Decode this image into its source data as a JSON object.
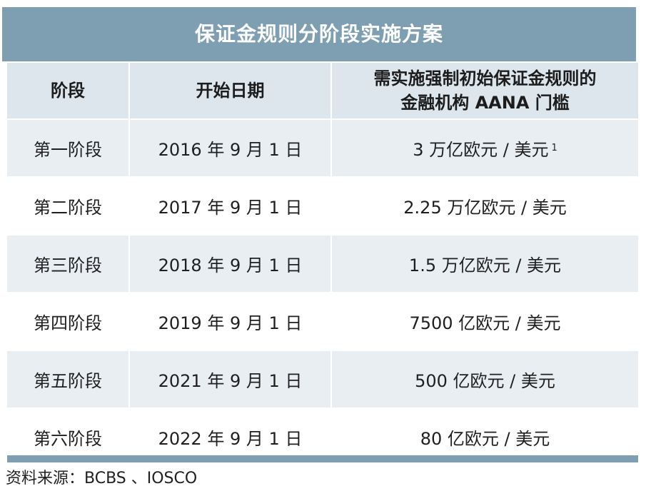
{
  "title": "保证金规则分阶段实施方案",
  "headers": {
    "col1": "阶段",
    "col2": "开始日期",
    "col3_line1": "需实施强制初始保证金规则的",
    "col3_line2": "金融机构 AANA 门槛"
  },
  "rows": [
    {
      "phase": "第一阶段",
      "date": "2016 年 9 月 1 日",
      "threshold": "3 万亿欧元 / 美元",
      "note": "1"
    },
    {
      "phase": "第二阶段",
      "date": "2017 年 9 月 1 日",
      "threshold": "2.25 万亿欧元 / 美元"
    },
    {
      "phase": "第三阶段",
      "date": "2018 年 9 月 1 日",
      "threshold": "1.5 万亿欧元 / 美元"
    },
    {
      "phase": "第四阶段",
      "date": "2019 年 9 月 1 日",
      "threshold": "7500 亿欧元 / 美元"
    },
    {
      "phase": "第五阶段",
      "date": "2021 年 9 月 1 日",
      "threshold": "500 亿欧元 / 美元"
    },
    {
      "phase": "第六阶段",
      "date": "2022 年 9 月 1 日",
      "threshold": "80 亿欧元 / 美元"
    }
  ],
  "source": "资料来源：BCBS 、IOSCO",
  "colors": {
    "accent": "#7e9fb2",
    "header_bg": "#dde6ed",
    "row_shade": "#e9eef3"
  }
}
